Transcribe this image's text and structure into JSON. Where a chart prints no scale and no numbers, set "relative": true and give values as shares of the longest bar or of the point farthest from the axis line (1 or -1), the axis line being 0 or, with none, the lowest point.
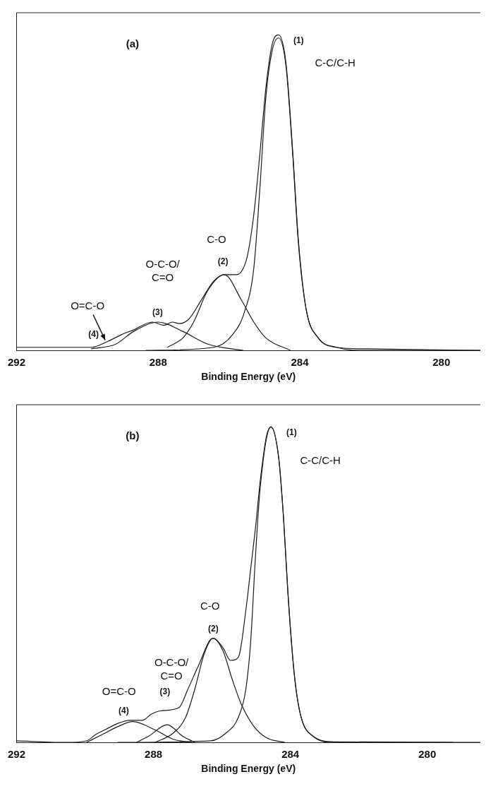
{
  "chart_data": [
    {
      "type": "line",
      "title": "(a)",
      "xlabel": "Binding Energy (eV)",
      "xlim": [
        292,
        278.9
      ],
      "xticks": [
        292,
        288,
        284,
        280
      ],
      "relative": true,
      "grid": false,
      "series": [
        {
          "color": "#1a1a1a",
          "x": [
            292,
            291.65,
            290.8,
            289.9,
            289.4,
            289.04,
            288.7,
            288.17,
            287.83,
            287.6,
            287.4,
            287.13,
            286.78,
            286.43,
            286.13,
            285.83,
            285.65,
            285.48,
            285.3,
            285.13,
            284.96,
            284.78,
            284.6,
            284.39,
            284.2,
            284.04,
            283.82,
            283.48,
            282.96,
            282.1,
            278.9
          ],
          "values": [
            0.01,
            0.01,
            0.01,
            0.01,
            0.03,
            0.05,
            0.065,
            0.09,
            0.08,
            0.09,
            0.085,
            0.1,
            0.16,
            0.22,
            0.24,
            0.24,
            0.25,
            0.3,
            0.43,
            0.62,
            0.83,
            0.97,
            1.0,
            0.91,
            0.63,
            0.35,
            0.13,
            0.04,
            0.01,
            0.005,
            0
          ]
        },
        {
          "color": "#1a1a1a",
          "x": [
            288.35,
            286.43,
            285.9,
            285.57,
            285.3,
            285.13,
            284.96,
            284.78,
            284.6,
            284.39,
            284.2,
            284.04,
            283.82,
            283.48,
            282.96,
            282.1,
            278.9
          ],
          "values": [
            0,
            0.01,
            0.05,
            0.12,
            0.26,
            0.51,
            0.8,
            0.95,
            0.99,
            0.9,
            0.62,
            0.34,
            0.13,
            0.04,
            0.01,
            0,
            0
          ]
        },
        {
          "color": "#1a1a1a",
          "x": [
            287.74,
            287.3,
            287.0,
            286.6,
            286.13,
            285.65,
            285.3,
            284.96,
            284.26
          ],
          "values": [
            0.01,
            0.04,
            0.09,
            0.19,
            0.24,
            0.16,
            0.09,
            0.04,
            0
          ]
        },
        {
          "color": "#1a1a1a",
          "x": [
            289.9,
            289.2,
            288.7,
            288.0,
            287.3,
            286.6,
            285.6
          ],
          "values": [
            0.005,
            0.02,
            0.06,
            0.09,
            0.06,
            0.02,
            0
          ]
        }
      ],
      "annotations": [
        "(1)",
        "C-C/C-H",
        "C-O",
        "(2)",
        "O-C-O/\nC=O",
        "(3)",
        "O=C-O",
        "(4)"
      ]
    },
    {
      "type": "line",
      "title": "(b)",
      "xlabel": "Binding Energy (eV)",
      "xlim": [
        292,
        278.45
      ],
      "xticks": [
        292,
        288,
        284,
        280
      ],
      "relative": true,
      "grid": false,
      "series": [
        {
          "color": "#1a1a1a",
          "x": [
            292,
            290.6,
            289.96,
            289.69,
            289.42,
            289.05,
            288.69,
            288.33,
            288.06,
            287.8,
            287.26,
            286.99,
            286.7,
            286.26,
            285.97,
            285.75,
            285.52,
            285.3,
            285.16,
            285.02,
            284.88,
            284.7,
            284.57,
            284.34,
            284.2,
            284.07,
            283.89,
            283.71,
            283.34,
            282.7,
            278.45
          ],
          "values": [
            0.005,
            0,
            0.005,
            0.025,
            0.04,
            0.06,
            0.07,
            0.07,
            0.09,
            0.1,
            0.11,
            0.17,
            0.24,
            0.33,
            0.3,
            0.26,
            0.27,
            0.42,
            0.55,
            0.68,
            0.83,
            0.97,
            1.0,
            0.9,
            0.71,
            0.47,
            0.22,
            0.09,
            0.02,
            0.002,
            0
          ]
        },
        {
          "color": "#1a1a1a",
          "x": [
            289.05,
            286.33,
            285.88,
            285.52,
            285.3,
            285.16,
            285.02,
            284.88,
            284.57,
            284.34,
            284.2,
            284.07,
            283.89,
            283.71,
            283.34,
            282.7,
            279.26
          ],
          "values": [
            0,
            0.005,
            0.03,
            0.08,
            0.17,
            0.32,
            0.59,
            0.81,
            1.0,
            0.9,
            0.71,
            0.47,
            0.22,
            0.09,
            0.02,
            0,
            0
          ]
        },
        {
          "color": "#1a1a1a",
          "x": [
            287.96,
            287.42,
            287.06,
            286.79,
            286.52,
            286.26,
            285.97,
            285.7,
            285.43,
            285.06,
            284.7,
            284.16
          ],
          "values": [
            0,
            0.03,
            0.08,
            0.17,
            0.28,
            0.33,
            0.29,
            0.2,
            0.12,
            0.05,
            0.015,
            0
          ]
        },
        {
          "color": "#1a1a1a",
          "x": [
            288.5,
            288.14,
            287.6,
            287.15,
            286.79
          ],
          "values": [
            0,
            0.02,
            0.056,
            0.02,
            0
          ]
        },
        {
          "color": "#1a1a1a",
          "x": [
            289.96,
            289.5,
            289.05,
            288.6,
            287.96,
            287.42,
            286.88
          ],
          "values": [
            0,
            0.025,
            0.05,
            0.066,
            0.04,
            0.01,
            0
          ]
        }
      ],
      "annotations": [
        "(1)",
        "C-C/C-H",
        "C-O",
        "(2)",
        "O-C-O/\nC=O",
        "(3)",
        "O=C-O",
        "(4)"
      ]
    }
  ]
}
